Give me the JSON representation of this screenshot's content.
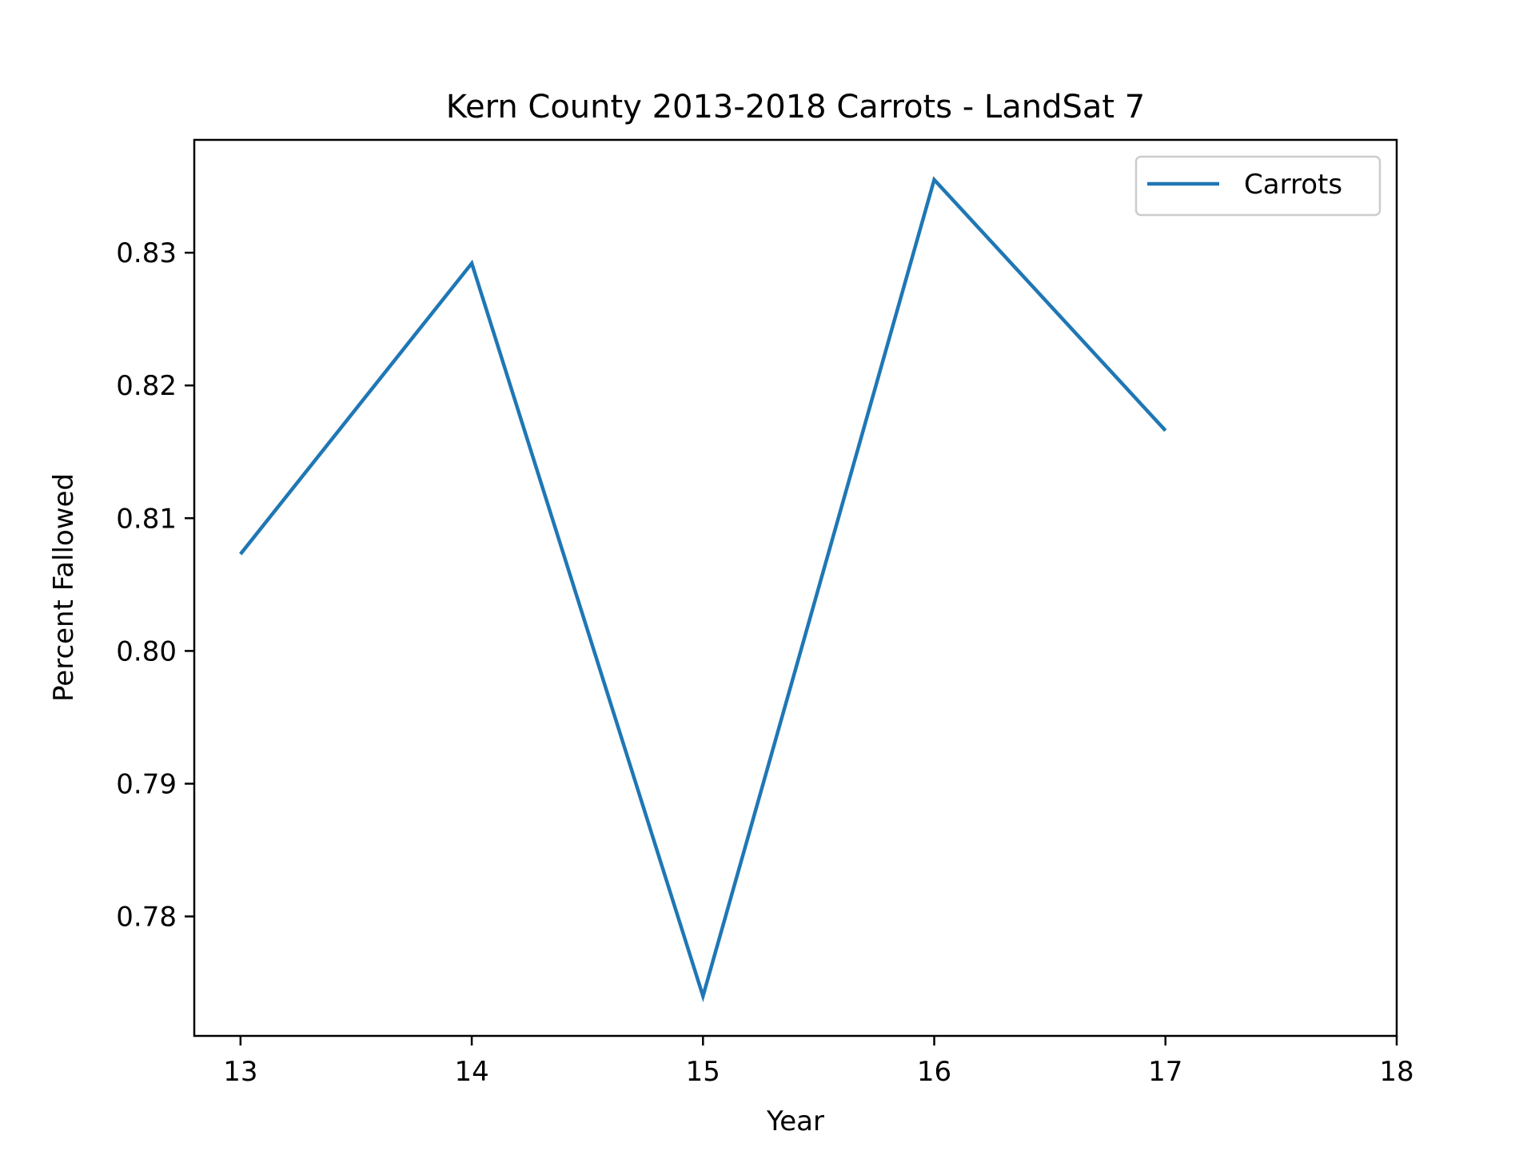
{
  "chart_data": {
    "type": "line",
    "title": "Kern County 2013-2018 Carrots - LandSat 7",
    "xlabel": "Year",
    "ylabel": "Percent Fallowed",
    "x": [
      13,
      14,
      15,
      16,
      17
    ],
    "series": [
      {
        "name": "Carrots",
        "color": "#1f77b4",
        "values": [
          0.8073,
          0.8292,
          0.774,
          0.8355,
          0.8166
        ]
      }
    ],
    "xlim": [
      12.8,
      18
    ],
    "ylim": [
      0.771,
      0.8385
    ],
    "xticks": [
      13,
      14,
      15,
      16,
      17,
      18
    ],
    "yticks": [
      0.78,
      0.79,
      0.8,
      0.81,
      0.82,
      0.83
    ],
    "xtick_labels": [
      "13",
      "14",
      "15",
      "16",
      "17",
      "18"
    ],
    "ytick_labels": [
      "0.78",
      "0.79",
      "0.80",
      "0.81",
      "0.82",
      "0.83"
    ],
    "grid": false,
    "legend": "top-right"
  }
}
